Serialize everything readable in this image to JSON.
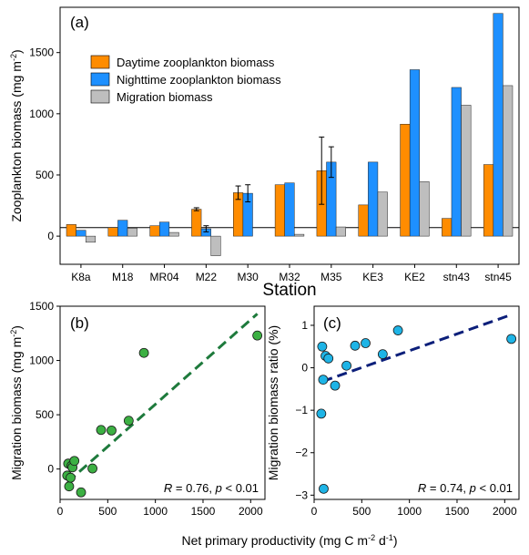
{
  "colors": {
    "day": "#ff8c00",
    "night": "#1e90ff",
    "migration": "#bebebe",
    "b_points": "#3cb043",
    "b_line": "#1e7a3c",
    "c_points": "#1eb4e6",
    "c_line": "#0c1f7a"
  },
  "chart_data": [
    {
      "type": "bar",
      "panel_label": "(a)",
      "xlabel": "Station",
      "ylabel": "Zooplankton biomass (mg m",
      "ylabel_sup": "-2",
      "ylabel_close": ")",
      "ylim": [
        -230,
        1870
      ],
      "yticks": [
        0,
        500,
        1000,
        1500
      ],
      "legend_position": "top-left",
      "categories": [
        "K8a",
        "M18",
        "MR04",
        "M22",
        "M30",
        "M32",
        "M35",
        "KE3",
        "KE2",
        "stn43",
        "stn45"
      ],
      "series": [
        {
          "name": "Daytime zooplankton biomass",
          "color_key": "day",
          "values": [
            95,
            70,
            85,
            220,
            355,
            420,
            535,
            255,
            915,
            145,
            585
          ],
          "errors": [
            0,
            0,
            0,
            12,
            55,
            0,
            275,
            0,
            0,
            0,
            0
          ]
        },
        {
          "name": "Nighttime zooplankton biomass",
          "color_key": "night",
          "values": [
            48,
            130,
            115,
            60,
            350,
            435,
            605,
            605,
            1360,
            1215,
            1820
          ],
          "errors": [
            0,
            0,
            0,
            25,
            70,
            0,
            125,
            0,
            0,
            0,
            0
          ]
        },
        {
          "name": "Migration biomass",
          "color_key": "migration",
          "values": [
            -50,
            65,
            30,
            -160,
            0,
            15,
            75,
            360,
            445,
            1070,
            1230
          ],
          "errors": [
            0,
            0,
            0,
            0,
            0,
            0,
            0,
            0,
            0,
            0,
            0
          ]
        }
      ]
    },
    {
      "type": "scatter",
      "panel_label": "(b)",
      "ylabel": "Migration biomass (mg m",
      "ylabel_sup": "-2",
      "ylabel_close": ")",
      "xlim": [
        0,
        2150
      ],
      "ylim": [
        -280,
        1500
      ],
      "xticks": [
        0,
        500,
        1000,
        1500,
        2000
      ],
      "yticks": [
        0,
        500,
        1000,
        1500
      ],
      "x": [
        75,
        85,
        95,
        110,
        120,
        130,
        150,
        220,
        340,
        430,
        540,
        720,
        880,
        2070
      ],
      "y": [
        -60,
        50,
        -160,
        -80,
        30,
        15,
        75,
        -215,
        5,
        360,
        355,
        445,
        1070,
        1230
      ],
      "trend": {
        "x": [
          80,
          2070
        ],
        "y": [
          -120,
          1430
        ]
      },
      "stats_r": "R",
      "stats_text": " = 0.76, ",
      "stats_p": "p",
      "stats_text2": " < 0.01"
    },
    {
      "type": "scatter",
      "panel_label": "(c)",
      "ylabel": "Migration biomass ratio (%)",
      "xlim": [
        0,
        2150
      ],
      "ylim": [
        -3.1,
        1.45
      ],
      "xticks": [
        0,
        500,
        1000,
        1500,
        2000
      ],
      "yticks": [
        -3,
        -2,
        -1,
        0,
        1
      ],
      "x": [
        75,
        85,
        95,
        100,
        120,
        150,
        220,
        340,
        430,
        540,
        720,
        880,
        2070
      ],
      "y": [
        -1.08,
        0.5,
        -0.28,
        -2.85,
        0.28,
        0.22,
        -0.42,
        0.05,
        0.52,
        0.58,
        0.32,
        0.88,
        0.68
      ],
      "trend": {
        "x": [
          90,
          2070
        ],
        "y": [
          -0.32,
          1.25
        ]
      },
      "stats_r": "R",
      "stats_text": " = 0.74, ",
      "stats_p": "p",
      "stats_text2": " < 0.01"
    }
  ],
  "shared_xlabel": "Net primary productivity (mg C m",
  "shared_xlabel_sup1": "-2",
  "shared_xlabel_mid": " d",
  "shared_xlabel_sup2": "-1",
  "shared_xlabel_close": ")"
}
